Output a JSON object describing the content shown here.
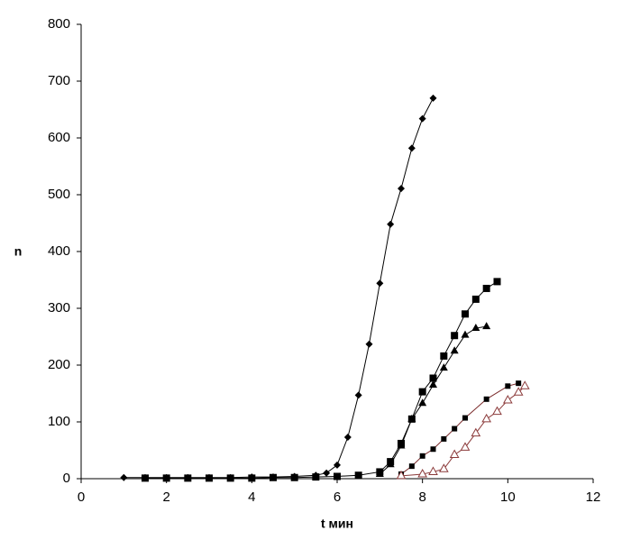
{
  "chart_data": {
    "type": "scatter",
    "x_label": "t мин",
    "y_label": "n",
    "xlim": [
      0,
      12
    ],
    "xticks": [
      0,
      2,
      4,
      6,
      8,
      10,
      12
    ],
    "ylim": [
      0,
      800
    ],
    "yticks": [
      0,
      100,
      200,
      300,
      400,
      500,
      600,
      700,
      800
    ],
    "grid": false,
    "series": [
      {
        "color": "#000000",
        "line_color": "#000000",
        "marker": "diamond",
        "x": [
          1,
          1.5,
          2,
          2.5,
          3,
          3.5,
          4,
          4.5,
          5,
          5.5,
          5.75,
          6,
          6.25,
          6.5,
          6.75,
          7,
          7.25,
          7.5,
          7.75,
          8,
          8.25
        ],
        "values": [
          2,
          2,
          2,
          2,
          2,
          2,
          3,
          3,
          4,
          6,
          10,
          24,
          73,
          147,
          237,
          344,
          448,
          511,
          582,
          634,
          670
        ]
      },
      {
        "color": "#000000",
        "line_color": "#000000",
        "marker": "square",
        "x": [
          1.5,
          2,
          2.5,
          3,
          3.5,
          4,
          4.5,
          5,
          5.5,
          6,
          6.5,
          7,
          7.25,
          7.5,
          7.75,
          8,
          8.25,
          8.5,
          8.75,
          9,
          9.25,
          9.5,
          9.75
        ],
        "values": [
          1,
          1,
          1,
          1,
          1,
          1,
          2,
          2,
          3,
          4,
          6,
          12,
          30,
          62,
          105,
          153,
          177,
          216,
          252,
          290,
          316,
          335,
          347
        ]
      },
      {
        "color": "#000000",
        "line_color": "#000000",
        "marker": "triangle",
        "x": [
          7,
          7.25,
          7.5,
          7.75,
          8,
          8.25,
          8.5,
          8.75,
          9,
          9.25,
          9.5
        ],
        "values": [
          8,
          25,
          58,
          105,
          133,
          165,
          195,
          225,
          253,
          265,
          268
        ]
      },
      {
        "color": "#000000",
        "line_color": "#7a2a2a",
        "marker": "small-square",
        "x": [
          7.5,
          7.75,
          8,
          8.25,
          8.5,
          8.75,
          9,
          9.5,
          10,
          10.25
        ],
        "values": [
          8,
          22,
          40,
          52,
          70,
          88,
          107,
          140,
          163,
          168
        ]
      },
      {
        "color": "#8b3a3a",
        "line_color": "#8b3a3a",
        "marker": "open-triangle",
        "x": [
          7.5,
          8,
          8.25,
          8.5,
          8.75,
          9,
          9.25,
          9.5,
          9.75,
          10,
          10.25,
          10.4
        ],
        "values": [
          5,
          8,
          12,
          17,
          42,
          55,
          80,
          105,
          118,
          138,
          152,
          163
        ]
      }
    ]
  }
}
